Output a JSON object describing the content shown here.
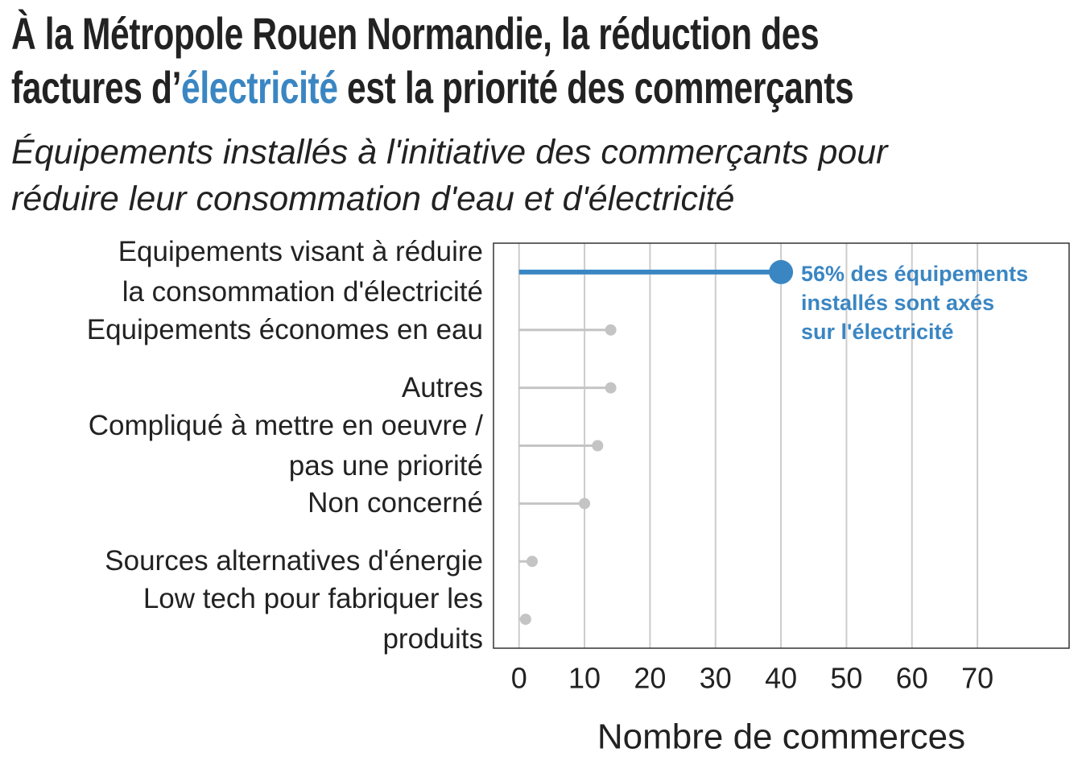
{
  "chart_data": {
    "type": "lollipop",
    "title_parts": [
      "À la Métropole Rouen Normandie, la réduction des\nfactures d’",
      "électricité",
      " est la priorité des commerçants"
    ],
    "subtitle": "Équipements installés à l'initiative des commerçants pour\nréduire leur consommation d'eau et d'électricité",
    "categories": [
      "Equipements visant à réduire\nla consommation d'électricité",
      "Equipements économes en eau",
      "Autres",
      "Compliqué à mettre en oeuvre /\npas une priorité",
      "Non concerné",
      "Sources alternatives d'énergie",
      "Low tech pour fabriquer les\nproduits"
    ],
    "values": [
      40,
      14,
      14,
      12,
      10,
      2,
      1
    ],
    "color": "#c4c4c4",
    "highlight_color": "#3a86c3",
    "annotation": "56% des équipements\ninstallés sont axés\nsur l'électricité",
    "xlabel": "Nombre de commerces",
    "xlim": [
      -3.9,
      84
    ],
    "xticks": [
      0,
      10,
      20,
      30,
      40,
      50,
      60,
      70
    ],
    "grid": true
  }
}
